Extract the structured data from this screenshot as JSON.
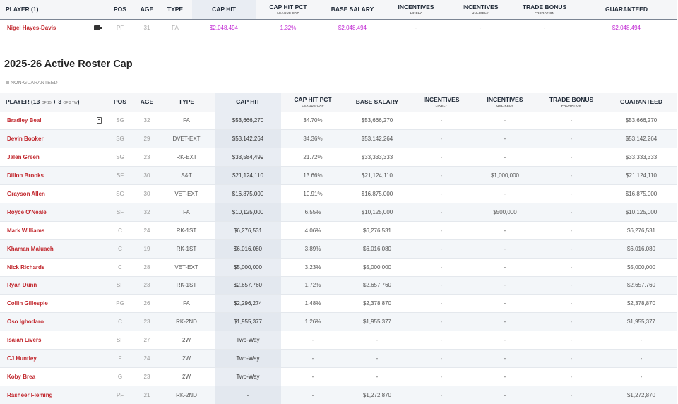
{
  "top_table": {
    "headers": {
      "player": "PLAYER (1)",
      "pos": "POS",
      "age": "AGE",
      "type": "TYPE",
      "cap_hit": "CAP HIT",
      "cap_hit_pct": "CAP HIT PCT",
      "cap_hit_pct_sub": "LEAGUE CAP",
      "base_salary": "BASE SALARY",
      "incentives_likely": "INCENTIVES",
      "incentives_likely_sub": "LIKELY",
      "incentives_unlikely": "INCENTIVES",
      "incentives_unlikely_sub": "UNLIKELY",
      "trade_bonus": "TRADE BONUS",
      "trade_bonus_sub": "PRORATION",
      "guaranteed": "GUARANTEED"
    },
    "row": {
      "player": "Nigel Hayes-Davis",
      "pos": "PF",
      "age": "31",
      "type": "FA",
      "cap_hit": "$2,048,494",
      "cap_hit_pct": "1.32%",
      "base_salary": "$2,048,494",
      "incentives_likely": "-",
      "incentives_unlikely": "-",
      "trade_bonus": "-",
      "guaranteed": "$2,048,494"
    }
  },
  "section": {
    "title": "2025-26 Active Roster Cap",
    "legend": "NON-GUARANTEED"
  },
  "roster_table": {
    "headers": {
      "player_prefix": "PLAYER (13",
      "player_of15": "OF 15",
      "player_plus": "+ 3",
      "player_of3tw": "OF 3 TW",
      "player_close": ")",
      "pos": "POS",
      "age": "AGE",
      "type": "TYPE",
      "cap_hit": "CAP HIT",
      "cap_hit_pct": "CAP HIT PCT",
      "cap_hit_pct_sub": "LEAGUE CAP",
      "base_salary": "BASE SALARY",
      "incentives_likely": "INCENTIVES",
      "incentives_likely_sub": "LIKELY",
      "incentives_unlikely": "INCENTIVES",
      "incentives_unlikely_sub": "UNLIKELY",
      "trade_bonus": "TRADE BONUS",
      "trade_bonus_sub": "PRORATION",
      "guaranteed": "GUARANTEED"
    },
    "rows": [
      {
        "player": "Bradley Beal",
        "pos": "SG",
        "age": "32",
        "type": "FA",
        "cap_hit": "$53,666,270",
        "cap_hit_pct": "34.70%",
        "base_salary": "$53,666,270",
        "incentives_likely": "-",
        "incentives_unlikely": "-",
        "trade_bonus": "-",
        "guaranteed": "$53,666,270"
      },
      {
        "player": "Devin Booker",
        "pos": "SG",
        "age": "29",
        "type": "DVET-EXT",
        "cap_hit": "$53,142,264",
        "cap_hit_pct": "34.36%",
        "base_salary": "$53,142,264",
        "incentives_likely": "-",
        "incentives_unlikely": "-",
        "trade_bonus": "-",
        "guaranteed": "$53,142,264"
      },
      {
        "player": "Jalen Green",
        "pos": "SG",
        "age": "23",
        "type": "RK-EXT",
        "cap_hit": "$33,584,499",
        "cap_hit_pct": "21.72%",
        "base_salary": "$33,333,333",
        "incentives_likely": "-",
        "incentives_unlikely": "-",
        "trade_bonus": "-",
        "guaranteed": "$33,333,333"
      },
      {
        "player": "Dillon Brooks",
        "pos": "SF",
        "age": "30",
        "type": "S&T",
        "cap_hit": "$21,124,110",
        "cap_hit_pct": "13.66%",
        "base_salary": "$21,124,110",
        "incentives_likely": "-",
        "incentives_unlikely": "$1,000,000",
        "trade_bonus": "-",
        "guaranteed": "$21,124,110"
      },
      {
        "player": "Grayson Allen",
        "pos": "SG",
        "age": "30",
        "type": "VET-EXT",
        "cap_hit": "$16,875,000",
        "cap_hit_pct": "10.91%",
        "base_salary": "$16,875,000",
        "incentives_likely": "-",
        "incentives_unlikely": "-",
        "trade_bonus": "-",
        "guaranteed": "$16,875,000"
      },
      {
        "player": "Royce O'Neale",
        "pos": "SF",
        "age": "32",
        "type": "FA",
        "cap_hit": "$10,125,000",
        "cap_hit_pct": "6.55%",
        "base_salary": "$10,125,000",
        "incentives_likely": "-",
        "incentives_unlikely": "$500,000",
        "trade_bonus": "-",
        "guaranteed": "$10,125,000"
      },
      {
        "player": "Mark Williams",
        "pos": "C",
        "age": "24",
        "type": "RK-1ST",
        "cap_hit": "$6,276,531",
        "cap_hit_pct": "4.06%",
        "base_salary": "$6,276,531",
        "incentives_likely": "-",
        "incentives_unlikely": "-",
        "trade_bonus": "-",
        "guaranteed": "$6,276,531"
      },
      {
        "player": "Khaman Maluach",
        "pos": "C",
        "age": "19",
        "type": "RK-1ST",
        "cap_hit": "$6,016,080",
        "cap_hit_pct": "3.89%",
        "base_salary": "$6,016,080",
        "incentives_likely": "-",
        "incentives_unlikely": "-",
        "trade_bonus": "-",
        "guaranteed": "$6,016,080"
      },
      {
        "player": "Nick Richards",
        "pos": "C",
        "age": "28",
        "type": "VET-EXT",
        "cap_hit": "$5,000,000",
        "cap_hit_pct": "3.23%",
        "base_salary": "$5,000,000",
        "incentives_likely": "-",
        "incentives_unlikely": "-",
        "trade_bonus": "-",
        "guaranteed": "$5,000,000"
      },
      {
        "player": "Ryan Dunn",
        "pos": "SF",
        "age": "23",
        "type": "RK-1ST",
        "cap_hit": "$2,657,760",
        "cap_hit_pct": "1.72%",
        "base_salary": "$2,657,760",
        "incentives_likely": "-",
        "incentives_unlikely": "-",
        "trade_bonus": "-",
        "guaranteed": "$2,657,760"
      },
      {
        "player": "Collin Gillespie",
        "pos": "PG",
        "age": "26",
        "type": "FA",
        "cap_hit": "$2,296,274",
        "cap_hit_pct": "1.48%",
        "base_salary": "$2,378,870",
        "incentives_likely": "-",
        "incentives_unlikely": "-",
        "trade_bonus": "-",
        "guaranteed": "$2,378,870"
      },
      {
        "player": "Oso Ighodaro",
        "pos": "C",
        "age": "23",
        "type": "RK-2ND",
        "cap_hit": "$1,955,377",
        "cap_hit_pct": "1.26%",
        "base_salary": "$1,955,377",
        "incentives_likely": "-",
        "incentives_unlikely": "-",
        "trade_bonus": "-",
        "guaranteed": "$1,955,377"
      },
      {
        "player": "Isaiah Livers",
        "pos": "SF",
        "age": "27",
        "type": "2W",
        "cap_hit": "Two-Way",
        "cap_hit_pct": "-",
        "base_salary": "-",
        "incentives_likely": "-",
        "incentives_unlikely": "-",
        "trade_bonus": "-",
        "guaranteed": "-"
      },
      {
        "player": "CJ Huntley",
        "pos": "F",
        "age": "24",
        "type": "2W",
        "cap_hit": "Two-Way",
        "cap_hit_pct": "-",
        "base_salary": "-",
        "incentives_likely": "-",
        "incentives_unlikely": "-",
        "trade_bonus": "-",
        "guaranteed": "-"
      },
      {
        "player": "Koby Brea",
        "pos": "G",
        "age": "23",
        "type": "2W",
        "cap_hit": "Two-Way",
        "cap_hit_pct": "-",
        "base_salary": "-",
        "incentives_likely": "-",
        "incentives_unlikely": "-",
        "trade_bonus": "-",
        "guaranteed": "-"
      },
      {
        "player": "Rasheer Fleming",
        "pos": "PF",
        "age": "21",
        "type": "RK-2ND",
        "cap_hit": "-",
        "cap_hit_pct": "-",
        "base_salary": "$1,272,870",
        "incentives_likely": "-",
        "incentives_unlikely": "-",
        "trade_bonus": "-",
        "guaranteed": "$1,272,870"
      }
    ]
  },
  "icons": {
    "top_row_icon": "card-icon",
    "beal_icon": "document-icon"
  }
}
